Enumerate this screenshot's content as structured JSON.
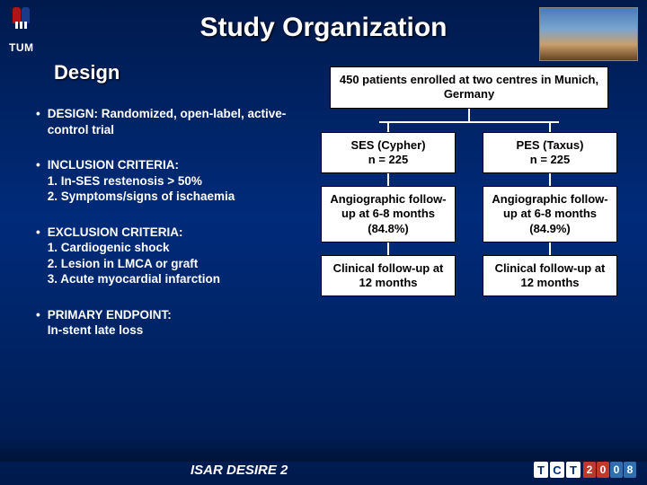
{
  "title": "Study Organization",
  "section_heading": "Design",
  "logo": {
    "dh_colors": [
      "#b01515",
      "#1a3a8a"
    ],
    "tum_label": "TUM"
  },
  "bullets": [
    {
      "label": "DESIGN:",
      "text": "Randomized, open-label, active-control trial"
    },
    {
      "label": "INCLUSION CRITERIA:",
      "lines": [
        "1. In-SES restenosis > 50%",
        "2. Symptoms/signs of ischaemia"
      ]
    },
    {
      "label": "EXCLUSION CRITERIA:",
      "lines": [
        "1. Cardiogenic shock",
        "2. Lesion in LMCA or graft",
        "3. Acute myocardial infarction"
      ]
    },
    {
      "label": "PRIMARY ENDPOINT:",
      "lines": [
        "In-stent late loss"
      ]
    }
  ],
  "flowchart": {
    "top": "450 patients enrolled at two centres in Munich, Germany",
    "arms": [
      {
        "arm": "SES (Cypher)\nn = 225",
        "angio": "Angiographic follow-up at 6-8 months (84.8%)",
        "clinical": "Clinical follow-up at 12 months"
      },
      {
        "arm": "PES (Taxus)\nn = 225",
        "angio": "Angiographic follow-up at 6-8 months (84.9%)",
        "clinical": "Clinical follow-up at 12 months"
      }
    ]
  },
  "footer": {
    "study_name": "ISAR DESIRE 2",
    "conference_letters": [
      "T",
      "C",
      "T"
    ],
    "conference_year": [
      "2",
      "0",
      "0",
      "8"
    ],
    "year_colors": [
      "#c0392b",
      "#c0392b",
      "#2f6fb0",
      "#2f6fb0"
    ]
  }
}
